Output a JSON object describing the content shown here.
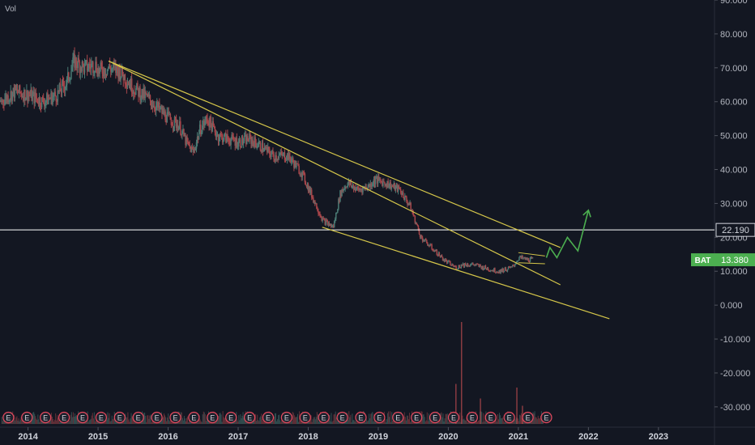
{
  "indicator_label": "Vol",
  "colors": {
    "background": "#131722",
    "candle_up": "#4a7a74",
    "candle_down": "#a8454a",
    "trendline": "#d6c74a",
    "projection": "#4caf50",
    "hline": "#ffffff",
    "price_tag": "#4caf50",
    "earnings_marker": "#e84a5f"
  },
  "symbol_tag": {
    "symbol": "BAT",
    "price": "13.380"
  },
  "hline_tag": "22.190",
  "earnings_marker_text": "E",
  "chart_data": {
    "type": "candlestick",
    "title": "",
    "xlabel": "",
    "ylabel": "",
    "ylim": [
      -36,
      90
    ],
    "xlim": [
      2013.6,
      2023.8
    ],
    "y_ticks": [
      "90.000",
      "80.000",
      "70.000",
      "60.000",
      "50.000",
      "40.000",
      "30.000",
      "20.000",
      "10.000",
      "0.000",
      "-10.000",
      "-20.000",
      "-30.000"
    ],
    "x_ticks": [
      "2014",
      "2015",
      "2016",
      "2017",
      "2018",
      "2019",
      "2020",
      "2021",
      "2022",
      "2023"
    ],
    "price_path": [
      [
        2013.6,
        60
      ],
      [
        2013.8,
        63
      ],
      [
        2014.0,
        62
      ],
      [
        2014.2,
        60
      ],
      [
        2014.4,
        62
      ],
      [
        2014.55,
        66
      ],
      [
        2014.65,
        72
      ],
      [
        2014.8,
        70
      ],
      [
        2014.95,
        71
      ],
      [
        2015.0,
        69
      ],
      [
        2015.15,
        70
      ],
      [
        2015.3,
        69
      ],
      [
        2015.5,
        64
      ],
      [
        2015.7,
        61
      ],
      [
        2015.85,
        58
      ],
      [
        2016.0,
        55
      ],
      [
        2016.15,
        53
      ],
      [
        2016.25,
        48
      ],
      [
        2016.35,
        45
      ],
      [
        2016.45,
        52
      ],
      [
        2016.55,
        55
      ],
      [
        2016.7,
        50
      ],
      [
        2016.85,
        49
      ],
      [
        2017.0,
        48
      ],
      [
        2017.15,
        49
      ],
      [
        2017.3,
        47
      ],
      [
        2017.5,
        44
      ],
      [
        2017.7,
        44
      ],
      [
        2017.9,
        39
      ],
      [
        2018.05,
        32
      ],
      [
        2018.2,
        25
      ],
      [
        2018.35,
        23
      ],
      [
        2018.45,
        33
      ],
      [
        2018.55,
        36
      ],
      [
        2018.7,
        34
      ],
      [
        2018.85,
        35
      ],
      [
        2018.95,
        37
      ],
      [
        2019.1,
        36
      ],
      [
        2019.3,
        34
      ],
      [
        2019.45,
        29
      ],
      [
        2019.6,
        20
      ],
      [
        2019.8,
        16
      ],
      [
        2019.95,
        13
      ],
      [
        2020.1,
        11
      ],
      [
        2020.2,
        12
      ],
      [
        2020.35,
        12
      ],
      [
        2020.5,
        11
      ],
      [
        2020.7,
        10
      ],
      [
        2020.9,
        11
      ],
      [
        2021.0,
        14
      ],
      [
        2021.1,
        13.5
      ],
      [
        2021.2,
        13.38
      ]
    ],
    "volume_spikes": [
      {
        "x": 2020.18,
        "value": 28
      },
      {
        "x": 2020.1,
        "value": 11
      },
      {
        "x": 2020.45,
        "value": 7
      },
      {
        "x": 2020.97,
        "value": 10
      },
      {
        "x": 2021.05,
        "value": 5
      }
    ],
    "trendlines": [
      {
        "from": [
          2015.15,
          72
        ],
        "to": [
          2021.6,
          17
        ]
      },
      {
        "from": [
          2015.15,
          72
        ],
        "to": [
          2021.6,
          6
        ]
      },
      {
        "from": [
          2018.2,
          23
        ],
        "to": [
          2022.3,
          -4
        ]
      }
    ],
    "projection_path": [
      [
        2021.4,
        14
      ],
      [
        2021.45,
        17
      ],
      [
        2021.55,
        14
      ],
      [
        2021.7,
        20
      ],
      [
        2021.85,
        16
      ],
      [
        2022.0,
        28
      ]
    ],
    "horizontal_line": 22.19,
    "last_price": 13.38,
    "earnings_markers_count": 30,
    "grid": false
  }
}
